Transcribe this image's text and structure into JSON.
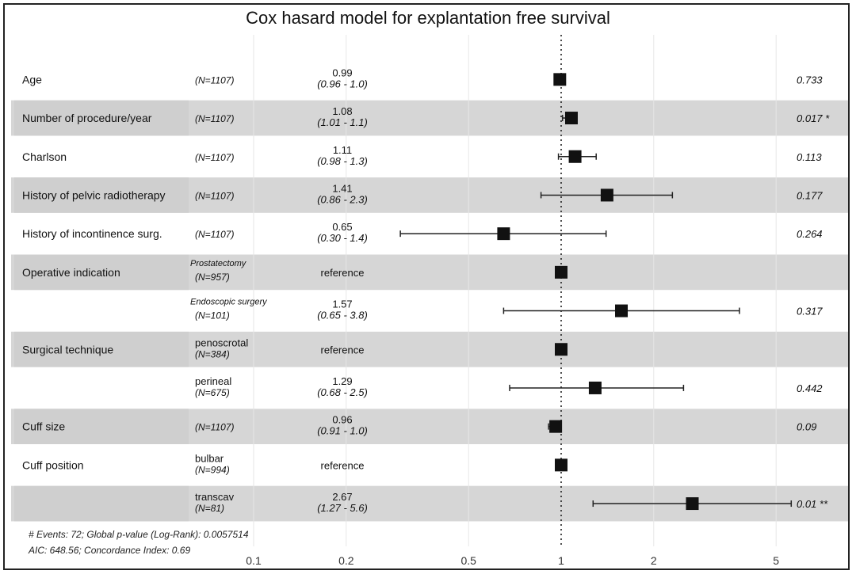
{
  "chart_data": {
    "type": "forest",
    "title": "Cox hasard model for explantation free survival",
    "x_scale": "log",
    "xlim": [
      0.08,
      7.5
    ],
    "x_ticks": [
      "0.1",
      "0.2",
      "0.5",
      "1",
      "2",
      "5"
    ],
    "x_tick_values": [
      0.1,
      0.2,
      0.5,
      1,
      2,
      5
    ],
    "reference_line": 1,
    "rows": [
      {
        "variable": "Age",
        "level": "",
        "n": "(N=1107)",
        "estimate": 0.99,
        "ci_text": "(0.96 - 1.0)",
        "est_text": "0.99",
        "ci": [
          0.96,
          1.0
        ],
        "p": "0.733",
        "shaded": false
      },
      {
        "variable": "Number of procedure/year",
        "level": "",
        "n": "(N=1107)",
        "estimate": 1.08,
        "ci_text": "(1.01 - 1.1)",
        "est_text": "1.08",
        "ci": [
          1.01,
          1.1
        ],
        "p": "0.017 *",
        "shaded": true
      },
      {
        "variable": "Charlson",
        "level": "",
        "n": "(N=1107)",
        "estimate": 1.11,
        "ci_text": "(0.98 - 1.3)",
        "est_text": "1.11",
        "ci": [
          0.98,
          1.3
        ],
        "p": "0.113",
        "shaded": false
      },
      {
        "variable": "History of pelvic radiotherapy",
        "level": "",
        "n": "(N=1107)",
        "estimate": 1.41,
        "ci_text": "(0.86 - 2.3)",
        "est_text": "1.41",
        "ci": [
          0.86,
          2.3
        ],
        "p": "0.177",
        "shaded": true
      },
      {
        "variable": "History of incontinence surg.",
        "level": "",
        "n": "(N=1107)",
        "estimate": 0.65,
        "ci_text": "(0.30 - 1.4)",
        "est_text": "0.65",
        "ci": [
          0.3,
          1.4
        ],
        "p": "0.264",
        "shaded": false
      },
      {
        "variable": "Operative indication",
        "level": "Prostatectomy",
        "n": "(N=957)",
        "estimate": 1,
        "ci_text": "",
        "est_text": "reference",
        "ci": null,
        "p": "",
        "shaded": true
      },
      {
        "variable": "",
        "level": "Endoscopic surgery",
        "n": "(N=101)",
        "estimate": 1.57,
        "ci_text": "(0.65 - 3.8)",
        "est_text": "1.57",
        "ci": [
          0.65,
          3.8
        ],
        "p": "0.317",
        "shaded": false
      },
      {
        "variable": "Surgical technique",
        "level": "penoscrotal",
        "n": "(N=384)",
        "estimate": 1,
        "ci_text": "",
        "est_text": "reference",
        "ci": null,
        "p": "",
        "shaded": true
      },
      {
        "variable": "",
        "level": "perineal",
        "n": "(N=675)",
        "estimate": 1.29,
        "ci_text": "(0.68 - 2.5)",
        "est_text": "1.29",
        "ci": [
          0.68,
          2.5
        ],
        "p": "0.442",
        "shaded": false
      },
      {
        "variable": "Cuff size",
        "level": "",
        "n": "(N=1107)",
        "estimate": 0.96,
        "ci_text": "(0.91 - 1.0)",
        "est_text": "0.96",
        "ci": [
          0.91,
          1.0
        ],
        "p": "0.09",
        "shaded": true
      },
      {
        "variable": "Cuff position",
        "level": "bulbar",
        "n": "(N=994)",
        "estimate": 1,
        "ci_text": "",
        "est_text": "reference",
        "ci": null,
        "p": "",
        "shaded": false
      },
      {
        "variable": "",
        "level": "transcav",
        "n": "(N=81)",
        "estimate": 2.67,
        "ci_text": "(1.27 - 5.6)",
        "est_text": "2.67",
        "ci": [
          1.27,
          5.6
        ],
        "p": "0.01 **",
        "shaded": true
      }
    ],
    "footer": [
      "# Events: 72; Global p-value (Log-Rank): 0.0057514",
      "AIC: 648.56; Concordance Index: 0.69"
    ],
    "grid": true
  }
}
